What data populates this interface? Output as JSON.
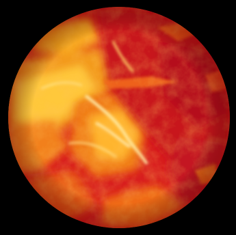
{
  "image": {
    "subject": "molten-sphere",
    "colors": {
      "background": "#000000",
      "deep_red": "#c8141e",
      "red": "#e02a1e",
      "orange": "#f06a14",
      "amber": "#f7a51c",
      "yellow": "#ffd23c",
      "highlight": "#fff6c8"
    }
  }
}
